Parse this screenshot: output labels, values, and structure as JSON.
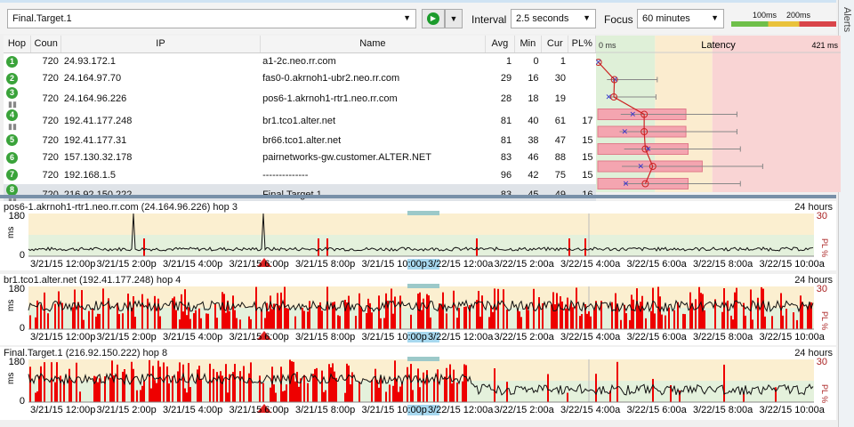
{
  "toolbar": {
    "target": "Final.Target.1",
    "interval_label": "Interval",
    "interval": "2.5 seconds",
    "focus_label": "Focus",
    "focus": "60 minutes",
    "scale_100": "100ms",
    "scale_200": "200ms"
  },
  "alerts_label": "Alerts",
  "columns": {
    "hop": "Hop",
    "count": "Coun",
    "ip": "IP",
    "name": "Name",
    "avg": "Avg",
    "min": "Min",
    "cur": "Cur",
    "pl": "PL%",
    "lat_min": "0 ms",
    "latency": "Latency",
    "lat_max": "421 ms"
  },
  "latency_max_ms": 421,
  "hops": [
    {
      "hop": "1",
      "count": "720",
      "ip": "24.93.172.1",
      "name": "a1-2c.neo.rr.com",
      "avg": "1",
      "min": "0",
      "cur": "1",
      "pl": "",
      "bars": false
    },
    {
      "hop": "2",
      "count": "720",
      "ip": "24.164.97.70",
      "name": "fas0-0.akrnoh1-ubr2.neo.rr.com",
      "avg": "29",
      "min": "16",
      "cur": "30",
      "pl": "",
      "bars": false
    },
    {
      "hop": "3",
      "count": "720",
      "ip": "24.164.96.226",
      "name": "pos6-1.akrnoh1-rtr1.neo.rr.com",
      "avg": "28",
      "min": "18",
      "cur": "19",
      "pl": "",
      "bars": true
    },
    {
      "hop": "4",
      "count": "720",
      "ip": "192.41.177.248",
      "name": "br1.tco1.alter.net",
      "avg": "81",
      "min": "40",
      "cur": "61",
      "pl": "17",
      "bars": true
    },
    {
      "hop": "5",
      "count": "720",
      "ip": "192.41.177.31",
      "name": "br66.tco1.alter.net",
      "avg": "81",
      "min": "38",
      "cur": "47",
      "pl": "15",
      "bars": false
    },
    {
      "hop": "6",
      "count": "720",
      "ip": "157.130.32.178",
      "name": "pairnetworks-gw.customer.ALTER.NET",
      "avg": "83",
      "min": "46",
      "cur": "88",
      "pl": "15",
      "bars": false
    },
    {
      "hop": "7",
      "count": "720",
      "ip": "192.168.1.5",
      "name": "--------------",
      "avg": "96",
      "min": "42",
      "cur": "75",
      "pl": "15",
      "bars": false
    },
    {
      "hop": "8",
      "count": "720",
      "ip": "216.92.150.222",
      "name": "Final.Target.1",
      "avg": "83",
      "min": "45",
      "cur": "49",
      "pl": "16",
      "bars": true
    }
  ],
  "graphs": [
    {
      "title": "pos6-1.akrnoh1-rtr1.neo.rr.com (24.164.96.226) hop 3",
      "range": "24 hours",
      "ymax": "180",
      "ymin": "0",
      "unit": "ms",
      "pl_max": "30",
      "pl_label": "PL %",
      "loss": "low"
    },
    {
      "title": "br1.tco1.alter.net (192.41.177.248) hop 4",
      "range": "24 hours",
      "ymax": "180",
      "ymin": "0",
      "unit": "ms",
      "pl_max": "30",
      "pl_label": "PL %",
      "loss": "high"
    },
    {
      "title": "Final.Target.1 (216.92.150.222) hop 8",
      "range": "24 hours",
      "ymax": "180",
      "ymin": "0",
      "unit": "ms",
      "pl_max": "30",
      "pl_label": "PL %",
      "loss": "mixed"
    }
  ],
  "time_labels": [
    "3/21/15 12:00p",
    "3/21/15 2:00p",
    "3/21/15 4:00p",
    "3/21/15 6:00p",
    "3/21/15 8:00p",
    "3/21/15 10:00p",
    "3/22/15 12:00a",
    "3/22/15 2:00a",
    "3/22/15 4:00a",
    "3/22/15 6:00a",
    "3/22/15 8:00a",
    "3/22/15 10:00a"
  ]
}
